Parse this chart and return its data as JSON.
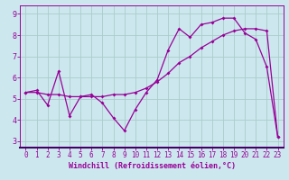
{
  "xlabel": "Windchill (Refroidissement éolien,°C)",
  "xlim": [
    -0.5,
    23.5
  ],
  "ylim": [
    2.7,
    9.4
  ],
  "yticks": [
    3,
    4,
    5,
    6,
    7,
    8,
    9
  ],
  "xticks": [
    0,
    1,
    2,
    3,
    4,
    5,
    6,
    7,
    8,
    9,
    10,
    11,
    12,
    13,
    14,
    15,
    16,
    17,
    18,
    19,
    20,
    21,
    22,
    23
  ],
  "bg_color": "#cce8ee",
  "line_color": "#990099",
  "series1_x": [
    0,
    1,
    2,
    3,
    4,
    5,
    6,
    7,
    8,
    9,
    10,
    11,
    12,
    13,
    14,
    15,
    16,
    17,
    18,
    19,
    20,
    21,
    22,
    23
  ],
  "series1_y": [
    5.3,
    5.4,
    4.7,
    6.3,
    4.2,
    5.1,
    5.2,
    4.8,
    4.1,
    3.5,
    4.5,
    5.3,
    5.9,
    7.3,
    8.3,
    7.9,
    8.5,
    8.6,
    8.8,
    8.8,
    8.1,
    7.8,
    6.5,
    3.2
  ],
  "series2_x": [
    0,
    1,
    2,
    3,
    4,
    5,
    6,
    7,
    8,
    9,
    10,
    11,
    12,
    13,
    14,
    15,
    16,
    17,
    18,
    19,
    20,
    21,
    22,
    23
  ],
  "series2_y": [
    5.3,
    5.3,
    5.2,
    5.2,
    5.1,
    5.1,
    5.1,
    5.1,
    5.2,
    5.2,
    5.3,
    5.5,
    5.8,
    6.2,
    6.7,
    7.0,
    7.4,
    7.7,
    8.0,
    8.2,
    8.3,
    8.3,
    8.2,
    3.2
  ],
  "grid_color": "#aacccc",
  "spine_color": "#990099",
  "tick_fontsize": 5.5,
  "xlabel_fontsize": 6.0
}
